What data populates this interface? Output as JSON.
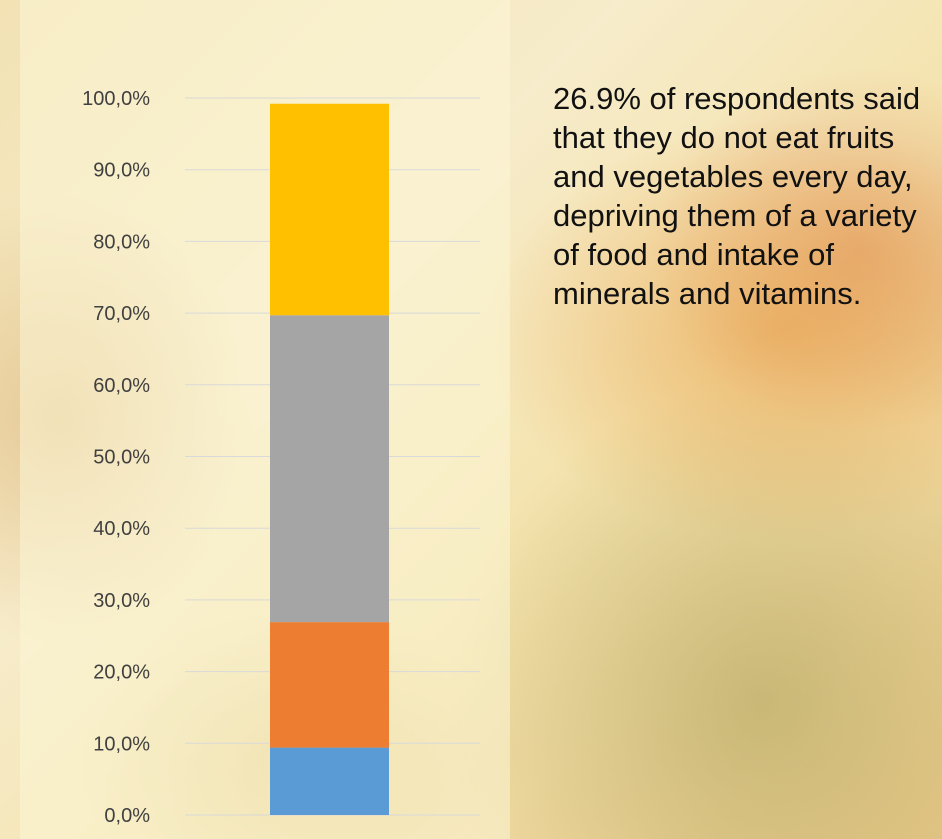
{
  "chart_data": {
    "type": "bar",
    "stacked": true,
    "categories": [
      ""
    ],
    "series": [
      {
        "values": [
          9.4
        ],
        "color": "#5B9BD5"
      },
      {
        "values": [
          17.5
        ],
        "color": "#ED7D31"
      },
      {
        "values": [
          42.8
        ],
        "color": "#A5A5A5"
      },
      {
        "values": [
          29.5
        ],
        "color": "#FFC000"
      }
    ],
    "ylim": [
      0,
      100
    ],
    "yticks": [
      "0,0%",
      "10,0%",
      "20,0%",
      "30,0%",
      "40,0%",
      "50,0%",
      "60,0%",
      "70,0%",
      "80,0%",
      "90,0%",
      "100,0%"
    ],
    "grid": true,
    "legend": "none"
  },
  "annotation": {
    "text": "26.9% of respondents said that they do not eat fruits and vegetables every day, depriving them of a variety of food and intake of minerals and vitamins."
  }
}
